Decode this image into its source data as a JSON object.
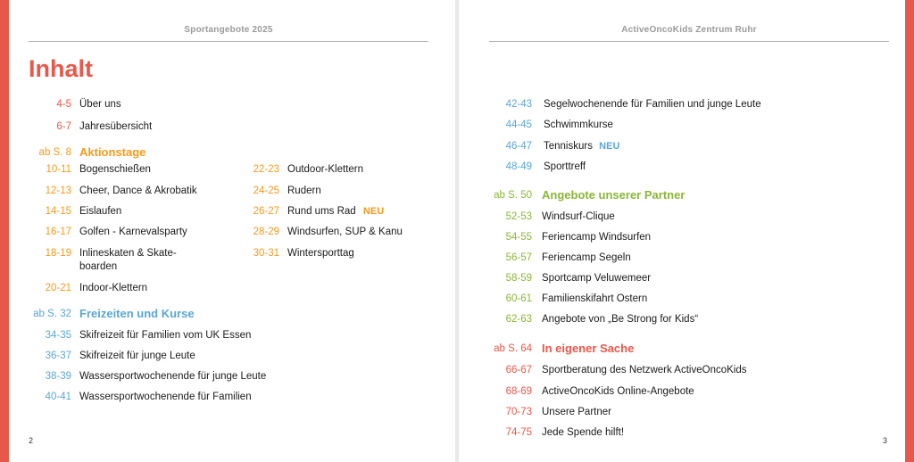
{
  "left_page": {
    "running_head": "Sportangebote 2025",
    "title": "Inhalt",
    "folio": "2",
    "intro": [
      {
        "pages": "4-5",
        "label": "Über uns"
      },
      {
        "pages": "6-7",
        "label": "Jahresübersicht"
      }
    ],
    "aktionstage": {
      "ref": "ab S. 8",
      "heading": "Aktionstage",
      "col1": [
        {
          "pages": "10-11",
          "label": "Bogenschießen"
        },
        {
          "pages": "12-13",
          "label": "Cheer, Dance & Akrobatik"
        },
        {
          "pages": "14-15",
          "label": "Eislaufen"
        },
        {
          "pages": "16-17",
          "label": "Golfen - Karnevalsparty"
        },
        {
          "pages": "18-19",
          "label": "Inlineskaten & Skate-boarden"
        },
        {
          "pages": "20-21",
          "label": "Indoor-Klettern"
        }
      ],
      "col2": [
        {
          "pages": "22-23",
          "label": "Outdoor-Klettern"
        },
        {
          "pages": "24-25",
          "label": "Rudern"
        },
        {
          "pages": "26-27",
          "label": "Rund ums Rad",
          "badge": "NEU"
        },
        {
          "pages": "28-29",
          "label": "Windsurfen, SUP & Kanu"
        },
        {
          "pages": "30-31",
          "label": "Wintersporttag"
        }
      ]
    },
    "freizeiten": {
      "ref": "ab S. 32",
      "heading": "Freizeiten und Kurse",
      "items": [
        {
          "pages": "34-35",
          "label": "Skifreizeit für Familien vom UK Essen"
        },
        {
          "pages": "36-37",
          "label": "Skifreizeit für junge Leute"
        },
        {
          "pages": "38-39",
          "label": "Wassersportwochenende für junge Leute"
        },
        {
          "pages": "40-41",
          "label": "Wassersportwochenende für Familien"
        }
      ]
    }
  },
  "right_page": {
    "running_head": "ActiveOncoKids Zentrum Ruhr",
    "folio": "3",
    "freizeiten_cont": [
      {
        "pages": "42-43",
        "label": "Segelwochenende für Familien und junge Leute"
      },
      {
        "pages": "44-45",
        "label": "Schwimmkurse"
      },
      {
        "pages": "46-47",
        "label": "Tenniskurs",
        "badge": "NEU"
      },
      {
        "pages": "48-49",
        "label": "Sporttreff"
      }
    ],
    "partner": {
      "ref": "ab S. 50",
      "heading": "Angebote unserer Partner",
      "items": [
        {
          "pages": "52-53",
          "label": "Windsurf-Clique"
        },
        {
          "pages": "54-55",
          "label": "Feriencamp Windsurfen"
        },
        {
          "pages": "56-57",
          "label": "Feriencamp Segeln"
        },
        {
          "pages": "58-59",
          "label": "Sportcamp Veluwemeer"
        },
        {
          "pages": "60-61",
          "label": "Familienskifahrt Ostern"
        },
        {
          "pages": "62-63",
          "label": "Angebote von „Be Strong for Kids“"
        }
      ]
    },
    "eigene": {
      "ref": "ab S. 64",
      "heading": "In eigener Sache",
      "items": [
        {
          "pages": "66-67",
          "label": "Sportberatung des Netzwerk ActiveOncoKids"
        },
        {
          "pages": "68-69",
          "label": "ActiveOncoKids Online-Angebote"
        },
        {
          "pages": "70-73",
          "label": "Unsere Partner"
        },
        {
          "pages": "74-75",
          "label": "Jede Spende hilft!"
        }
      ]
    }
  },
  "colors": {
    "red": "#e8584a",
    "orange": "#f39a1e",
    "blue": "#5aa7d1",
    "green": "#8bb637"
  }
}
